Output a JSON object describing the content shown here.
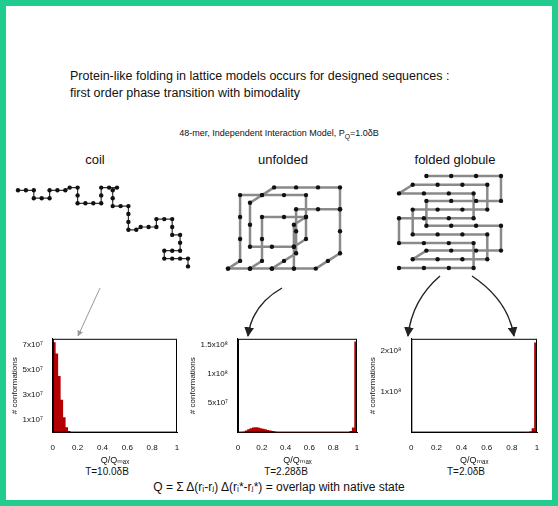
{
  "header": {
    "title": [
      "Protein-like folding in lattice models occurs for designed sequences :",
      "first order phase transition with bimodality"
    ],
    "subtitle": [
      {
        "text": "48-mer, Independent Interaction Model, P"
      },
      {
        "sub": "Q"
      },
      {
        "text": "=1.0δB"
      }
    ]
  },
  "panels": [
    {
      "label": "coil"
    },
    {
      "label": "unfolded"
    },
    {
      "label": "folded globule"
    }
  ],
  "chart_data": [
    {
      "type": "histogram",
      "title": "T=10.0δB",
      "x_label": "Q/Qₘₐₓ",
      "y_label": "# conformations",
      "bins": [
        0,
        0.02,
        0.04,
        0.06,
        0.08,
        0.1,
        0.12,
        0.14
      ],
      "counts": [
        72000000,
        63000000,
        45000000,
        26000000,
        12000000,
        4000000,
        1000000
      ],
      "color": "#b30000",
      "xlim": [
        0,
        1
      ],
      "xticks": [
        0,
        0.2,
        0.4,
        0.6,
        0.8,
        1
      ],
      "ylim": [
        0,
        75000000
      ],
      "yticks": [
        {
          "value": 10000000,
          "label": "1x10⁷"
        },
        {
          "value": 30000000,
          "label": "3x10⁷"
        },
        {
          "value": 50000000,
          "label": "5x10⁷"
        },
        {
          "value": 70000000,
          "label": "7x10⁷"
        }
      ],
      "grid": false
    },
    {
      "type": "histogram",
      "title": "T=2.28δB",
      "x_label": "Q/Qₘₐₓ",
      "y_label": "# conformations",
      "bins": [
        0,
        0.02,
        0.04,
        0.06,
        0.08,
        0.1,
        0.12,
        0.14,
        0.16,
        0.18,
        0.2,
        0.22,
        0.24,
        0.26,
        0.28,
        0.3,
        0.32,
        0.34,
        0.36,
        0.38,
        0.4,
        0.42,
        0.44,
        0.46,
        0.48,
        0.5,
        0.52,
        0.54,
        0.56,
        0.58,
        0.6,
        0.62,
        0.64,
        0.66,
        0.68,
        0.7,
        0.72,
        0.74,
        0.76,
        0.78,
        0.8,
        0.82,
        0.84,
        0.86,
        0.88,
        0.9,
        0.92,
        0.94,
        0.96,
        0.98,
        1
      ],
      "counts": [
        0,
        0,
        1000000,
        3000000,
        5000000,
        7000000,
        8000000,
        8500000,
        8000000,
        7000000,
        6000000,
        5000000,
        4000000,
        3000000,
        2000000,
        1200000,
        600000,
        200000,
        0,
        0,
        0,
        0,
        0,
        0,
        0,
        0,
        0,
        0,
        0,
        0,
        0,
        0,
        0,
        0,
        0,
        0,
        0,
        0,
        0,
        0,
        0,
        0,
        0,
        0,
        0,
        0,
        0,
        2000000,
        8000000,
        155000000
      ],
      "color": "#b30000",
      "xlim": [
        0,
        1
      ],
      "xticks": [
        0,
        0.2,
        0.4,
        0.6,
        0.8,
        1
      ],
      "ylim": [
        0,
        160000000
      ],
      "yticks": [
        {
          "value": 50000000,
          "label": "5x10⁷"
        },
        {
          "value": 100000000,
          "label": "1x10⁸"
        },
        {
          "value": 150000000,
          "label": "1.5x10⁸"
        }
      ],
      "grid": false
    },
    {
      "type": "histogram",
      "title": "T=2.0δB",
      "x_label": "Q/Qₘₐₓ",
      "y_label": "# conformations",
      "bins": [
        0.9,
        0.92,
        0.94,
        0.96,
        0.98,
        1
      ],
      "counts": [
        0,
        500000,
        2000000,
        10000000,
        220000000
      ],
      "color": "#b30000",
      "xlim": [
        0,
        1
      ],
      "xticks": [
        0,
        0.2,
        0.4,
        0.6,
        0.8,
        1
      ],
      "ylim": [
        0,
        230000000
      ],
      "yticks": [
        {
          "value": 100000000,
          "label": "1x10⁸"
        },
        {
          "value": 200000000,
          "label": "2x10⁸"
        }
      ],
      "grid": false
    }
  ],
  "footer": "Q = Σ Δ(rᵢ-rⱼ) Δ(rᵢ*-rⱼ*) = overlap with native state"
}
